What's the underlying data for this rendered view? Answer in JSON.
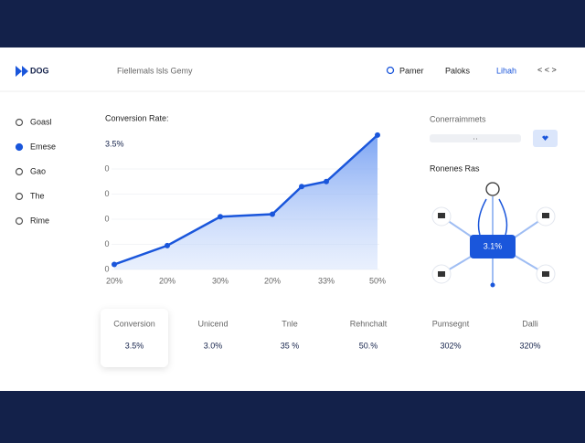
{
  "header": {
    "logo": "DOG",
    "subtitle": "Fiellemals lsls Gemy",
    "nav": [
      "Pamer",
      "Paloks",
      "Lihah"
    ],
    "arrows": "< < >"
  },
  "sidebar": [
    "Goasl",
    "Emese",
    "Gao",
    "The",
    "Rime"
  ],
  "chart_data": {
    "type": "area",
    "title": "Conversion Rate:",
    "headline": "3.5%",
    "categories": [
      "20%",
      "20%",
      "30%",
      "20%",
      null,
      "33%",
      "50%"
    ],
    "values": [
      0.2,
      0.95,
      2.1,
      2.2,
      3.3,
      3.5,
      5.35
    ],
    "color": "#1a56db",
    "ylim": [
      0,
      5.5
    ],
    "yticks": [
      0,
      {
        "value": 1,
        "label": "0"
      },
      {
        "value": 2,
        "label": "0"
      },
      {
        "value": 3,
        "label": "0"
      },
      {
        "value": 4,
        "label": "0"
      }
    ]
  },
  "stats": [
    {
      "label": "Conversion",
      "value": "3.5%"
    },
    {
      "label": "Unicend",
      "value": "3.0%"
    },
    {
      "label": "Tnle",
      "value": "35 %"
    },
    {
      "label": "Rehnchalt",
      "value": "50.%"
    },
    {
      "label": "Pumsegnt",
      "value": "302%"
    },
    {
      "label": "Dalli",
      "value": "320%"
    }
  ],
  "panel": {
    "title": "Conerraimmets",
    "input": "··",
    "network_title": "Ronenes Ras",
    "network_value": "3.1%"
  }
}
